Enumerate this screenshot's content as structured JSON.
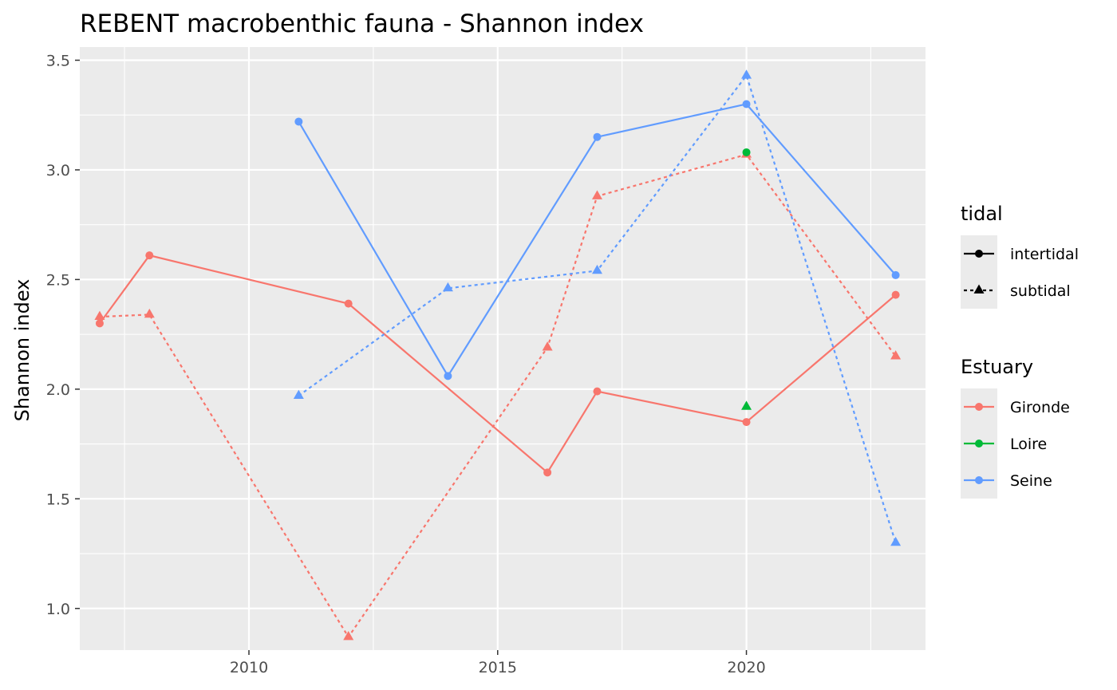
{
  "chart_data": {
    "type": "line",
    "title": "REBENT macrobenthic fauna - Shannon index",
    "xlabel": "",
    "ylabel": "Shannon index",
    "xlim": [
      2006.6,
      2023.6
    ],
    "ylim": [
      0.81,
      3.56
    ],
    "x_ticks": [
      2010,
      2015,
      2020
    ],
    "y_ticks": [
      1.0,
      1.5,
      2.0,
      2.5,
      3.0,
      3.5
    ],
    "x_tick_labels": [
      "2010",
      "2015",
      "2020"
    ],
    "y_tick_labels": [
      "1.0",
      "1.5",
      "2.0",
      "2.5",
      "3.0",
      "3.5"
    ],
    "grid": true,
    "legend_placement": "right",
    "legends": [
      {
        "title": "tidal",
        "entries": [
          {
            "label": "intertidal",
            "line": "solid",
            "shape": "circle"
          },
          {
            "label": "subtidal",
            "line": "dashed",
            "shape": "triangle"
          }
        ]
      },
      {
        "title": "Estuary",
        "entries": [
          {
            "label": "Gironde",
            "color": "#F8766D"
          },
          {
            "label": "Loire",
            "color": "#00BA38"
          },
          {
            "label": "Seine",
            "color": "#619CFF"
          }
        ]
      }
    ],
    "series": [
      {
        "estuary": "Gironde",
        "tidal": "intertidal",
        "color": "#F8766D",
        "line": "solid",
        "shape": "circle",
        "x": [
          2007,
          2008,
          2012,
          2016,
          2017,
          2020,
          2023
        ],
        "y": [
          2.3,
          2.61,
          2.39,
          1.62,
          1.99,
          1.85,
          2.43
        ]
      },
      {
        "estuary": "Gironde",
        "tidal": "subtidal",
        "color": "#F8766D",
        "line": "dashed",
        "shape": "triangle",
        "x": [
          2007,
          2008,
          2012,
          2016,
          2017,
          2020,
          2023
        ],
        "y": [
          2.33,
          2.34,
          0.87,
          2.19,
          2.88,
          3.07,
          2.15
        ]
      },
      {
        "estuary": "Loire",
        "tidal": "intertidal",
        "color": "#00BA38",
        "line": "solid",
        "shape": "circle",
        "x": [
          2020
        ],
        "y": [
          3.08
        ]
      },
      {
        "estuary": "Loire",
        "tidal": "subtidal",
        "color": "#00BA38",
        "line": "dashed",
        "shape": "triangle",
        "x": [
          2020
        ],
        "y": [
          1.92
        ]
      },
      {
        "estuary": "Seine",
        "tidal": "intertidal",
        "color": "#619CFF",
        "line": "solid",
        "shape": "circle",
        "x": [
          2011,
          2014,
          2017,
          2020,
          2023
        ],
        "y": [
          3.22,
          2.06,
          3.15,
          3.3,
          2.52
        ]
      },
      {
        "estuary": "Seine",
        "tidal": "subtidal",
        "color": "#619CFF",
        "line": "dashed",
        "shape": "triangle",
        "x": [
          2011,
          2014,
          2017,
          2020,
          2023
        ],
        "y": [
          1.97,
          2.46,
          2.54,
          3.43,
          1.3
        ]
      }
    ]
  }
}
